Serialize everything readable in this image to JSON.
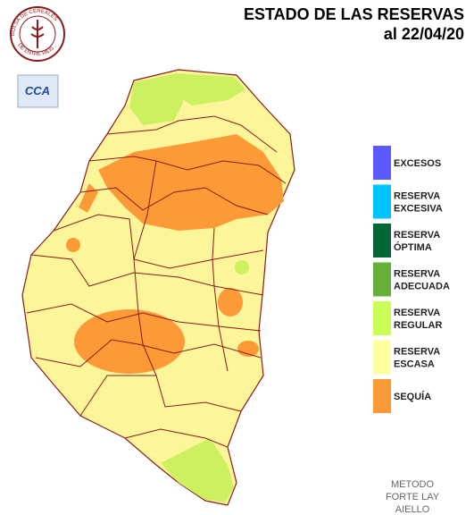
{
  "header": {
    "title": "ESTADO DE LAS RESERVAS",
    "date": "al  22/04/20"
  },
  "logo": {
    "top": "BOLSA DE CEREALES",
    "bottom": "DE ENTRE RIOS",
    "badge": "CCA"
  },
  "legend": [
    {
      "label": [
        "EXCESOS"
      ],
      "color": "#5a5aff"
    },
    {
      "label": [
        "RESERVA",
        "EXCESIVA"
      ],
      "color": "#00c3ff"
    },
    {
      "label": [
        "RESERVA",
        "ÓPTIMA"
      ],
      "color": "#006633"
    },
    {
      "label": [
        "RESERVA",
        "ADECUADA"
      ],
      "color": "#66b03a"
    },
    {
      "label": [
        "RESERVA",
        "REGULAR"
      ],
      "color": "#ccff55"
    },
    {
      "label": [
        "RESERVA",
        "ESCASA"
      ],
      "color": "#ffffa0"
    },
    {
      "label": [
        "SEQUÍA"
      ],
      "color": "#fb9a36"
    }
  ],
  "method": [
    "METODO",
    "FORTE LAY",
    "AIELLO"
  ]
}
